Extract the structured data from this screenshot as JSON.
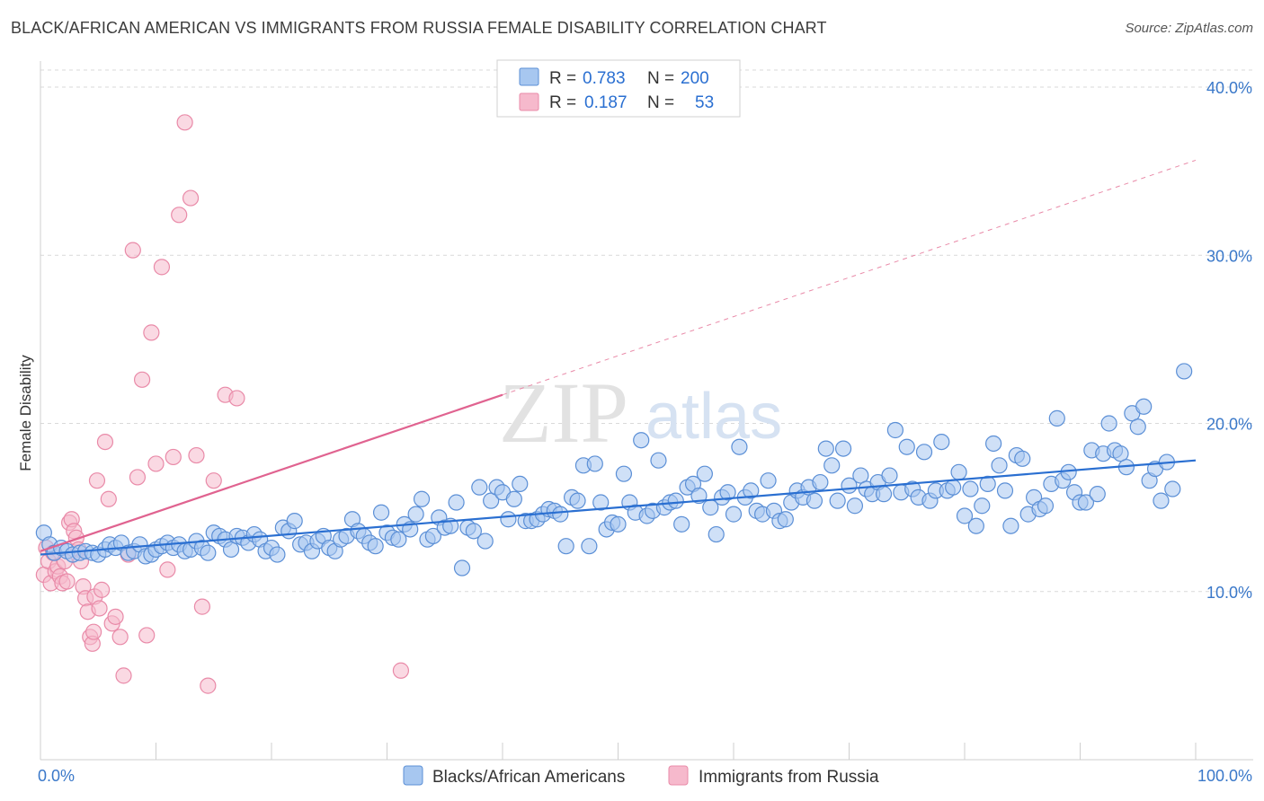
{
  "title": "BLACK/AFRICAN AMERICAN VS IMMIGRANTS FROM RUSSIA FEMALE DISABILITY CORRELATION CHART",
  "source": "Source: ZipAtlas.com",
  "watermark": {
    "zip": "ZIP",
    "atlas": "atlas"
  },
  "colors": {
    "blue_fill": "#a7c7f0",
    "blue_stroke": "#5b8fd6",
    "blue_line": "#2a6fd1",
    "pink_fill": "#f6b9cc",
    "pink_stroke": "#e98aa8",
    "pink_line": "#e06390",
    "grid": "#d9d9d9",
    "tick_text": "#3a78c9"
  },
  "legend": {
    "rows": [
      {
        "r_label": "R =",
        "r_value": "0.783",
        "n_label": "N =",
        "n_value": "200"
      },
      {
        "r_label": "R =",
        "r_value": "0.187",
        "n_label": "N =",
        "n_value": "53"
      }
    ]
  },
  "bottom_legend": [
    "Blacks/African Americans",
    "Immigrants from Russia"
  ],
  "chart_data": {
    "type": "scatter",
    "title": "BLACK/AFRICAN AMERICAN VS IMMIGRANTS FROM RUSSIA FEMALE DISABILITY CORRELATION CHART",
    "xlabel": "",
    "ylabel": "Female Disability",
    "xlim": [
      0,
      100
    ],
    "ylim": [
      0,
      40
    ],
    "x_tick_labels": [
      "0.0%",
      "100.0%"
    ],
    "y_ticks": [
      10,
      20,
      30,
      40
    ],
    "y_tick_labels": [
      "10.0%",
      "20.0%",
      "30.0%",
      "40.0%"
    ],
    "grid": true,
    "legend_position": "top-center",
    "series": [
      {
        "name": "Blacks/African Americans",
        "r": 0.783,
        "n": 200,
        "trend": {
          "x": [
            0,
            100
          ],
          "y": [
            12.2,
            17.8
          ]
        },
        "points": [
          [
            0.3,
            13.5
          ],
          [
            0.8,
            12.8
          ],
          [
            1.2,
            12.3
          ],
          [
            1.8,
            12.6
          ],
          [
            2.3,
            12.4
          ],
          [
            2.8,
            12.2
          ],
          [
            3.4,
            12.3
          ],
          [
            3.9,
            12.4
          ],
          [
            4.5,
            12.3
          ],
          [
            5.0,
            12.2
          ],
          [
            5.6,
            12.5
          ],
          [
            6.0,
            12.8
          ],
          [
            6.5,
            12.6
          ],
          [
            7.0,
            12.9
          ],
          [
            7.6,
            12.3
          ],
          [
            8.1,
            12.4
          ],
          [
            8.6,
            12.8
          ],
          [
            9.1,
            12.1
          ],
          [
            9.6,
            12.2
          ],
          [
            10.0,
            12.5
          ],
          [
            10.5,
            12.7
          ],
          [
            11.0,
            12.9
          ],
          [
            11.5,
            12.6
          ],
          [
            12.0,
            12.8
          ],
          [
            12.5,
            12.4
          ],
          [
            13.0,
            12.5
          ],
          [
            13.5,
            13.0
          ],
          [
            14.0,
            12.6
          ],
          [
            14.5,
            12.3
          ],
          [
            15.0,
            13.5
          ],
          [
            15.5,
            13.3
          ],
          [
            16.0,
            13.1
          ],
          [
            16.5,
            12.5
          ],
          [
            17.0,
            13.3
          ],
          [
            17.5,
            13.2
          ],
          [
            18.0,
            12.9
          ],
          [
            18.5,
            13.4
          ],
          [
            19.0,
            13.1
          ],
          [
            19.5,
            12.4
          ],
          [
            20.0,
            12.6
          ],
          [
            20.5,
            12.2
          ],
          [
            21.0,
            13.8
          ],
          [
            21.5,
            13.6
          ],
          [
            22.0,
            14.2
          ],
          [
            22.5,
            12.8
          ],
          [
            23.0,
            12.9
          ],
          [
            23.5,
            12.4
          ],
          [
            24.0,
            13.0
          ],
          [
            24.5,
            13.3
          ],
          [
            25.0,
            12.6
          ],
          [
            25.5,
            12.4
          ],
          [
            26.0,
            13.1
          ],
          [
            26.5,
            13.3
          ],
          [
            27.0,
            14.3
          ],
          [
            27.5,
            13.6
          ],
          [
            28.0,
            13.3
          ],
          [
            28.5,
            12.9
          ],
          [
            29.0,
            12.7
          ],
          [
            29.5,
            14.7
          ],
          [
            30.0,
            13.5
          ],
          [
            30.5,
            13.2
          ],
          [
            31.0,
            13.1
          ],
          [
            31.5,
            14.0
          ],
          [
            32.0,
            13.7
          ],
          [
            32.5,
            14.6
          ],
          [
            33.0,
            15.5
          ],
          [
            33.5,
            13.1
          ],
          [
            34.0,
            13.3
          ],
          [
            34.5,
            14.4
          ],
          [
            35.0,
            13.8
          ],
          [
            35.5,
            13.9
          ],
          [
            36.0,
            15.3
          ],
          [
            36.5,
            11.4
          ],
          [
            37.0,
            13.8
          ],
          [
            37.5,
            13.6
          ],
          [
            38.0,
            16.2
          ],
          [
            38.5,
            13.0
          ],
          [
            39.0,
            15.4
          ],
          [
            39.5,
            16.2
          ],
          [
            40.0,
            15.9
          ],
          [
            40.5,
            14.3
          ],
          [
            41.0,
            15.5
          ],
          [
            41.5,
            16.4
          ],
          [
            42.0,
            14.2
          ],
          [
            42.5,
            14.2
          ],
          [
            43.0,
            14.3
          ],
          [
            43.5,
            14.6
          ],
          [
            44.0,
            14.9
          ],
          [
            44.5,
            14.8
          ],
          [
            45.0,
            14.6
          ],
          [
            45.5,
            12.7
          ],
          [
            46.0,
            15.6
          ],
          [
            46.5,
            15.4
          ],
          [
            47.0,
            17.5
          ],
          [
            47.5,
            12.7
          ],
          [
            48.0,
            17.6
          ],
          [
            48.5,
            15.3
          ],
          [
            49.0,
            13.7
          ],
          [
            49.5,
            14.1
          ],
          [
            50.0,
            14.0
          ],
          [
            50.5,
            17.0
          ],
          [
            51.0,
            15.3
          ],
          [
            51.5,
            14.7
          ],
          [
            52.0,
            19.0
          ],
          [
            52.5,
            14.5
          ],
          [
            53.0,
            14.8
          ],
          [
            53.5,
            17.8
          ],
          [
            54.0,
            15.0
          ],
          [
            54.5,
            15.3
          ],
          [
            55.0,
            15.4
          ],
          [
            55.5,
            14.0
          ],
          [
            56.0,
            16.2
          ],
          [
            56.5,
            16.4
          ],
          [
            57.0,
            15.7
          ],
          [
            57.5,
            17.0
          ],
          [
            58.0,
            15.0
          ],
          [
            58.5,
            13.4
          ],
          [
            59.0,
            15.6
          ],
          [
            59.5,
            15.9
          ],
          [
            60.0,
            14.6
          ],
          [
            60.5,
            18.6
          ],
          [
            61.0,
            15.6
          ],
          [
            61.5,
            16.0
          ],
          [
            62.0,
            14.8
          ],
          [
            62.5,
            14.6
          ],
          [
            63.0,
            16.6
          ],
          [
            63.5,
            14.8
          ],
          [
            64.0,
            14.2
          ],
          [
            64.5,
            14.3
          ],
          [
            65.0,
            15.3
          ],
          [
            65.5,
            16.0
          ],
          [
            66.0,
            15.6
          ],
          [
            66.5,
            16.2
          ],
          [
            67.0,
            15.4
          ],
          [
            67.5,
            16.5
          ],
          [
            68.0,
            18.5
          ],
          [
            68.5,
            17.5
          ],
          [
            69.0,
            15.4
          ],
          [
            69.5,
            18.5
          ],
          [
            70.0,
            16.3
          ],
          [
            70.5,
            15.1
          ],
          [
            71.0,
            16.9
          ],
          [
            71.5,
            16.1
          ],
          [
            72.0,
            15.8
          ],
          [
            72.5,
            16.5
          ],
          [
            73.0,
            15.8
          ],
          [
            73.5,
            16.9
          ],
          [
            74.0,
            19.6
          ],
          [
            74.5,
            15.9
          ],
          [
            75.0,
            18.6
          ],
          [
            75.5,
            16.1
          ],
          [
            76.0,
            15.6
          ],
          [
            76.5,
            18.3
          ],
          [
            77.0,
            15.4
          ],
          [
            77.5,
            16.0
          ],
          [
            78.0,
            18.9
          ],
          [
            78.5,
            16.0
          ],
          [
            79.0,
            16.2
          ],
          [
            79.5,
            17.1
          ],
          [
            80.0,
            14.5
          ],
          [
            80.5,
            16.1
          ],
          [
            81.0,
            13.9
          ],
          [
            81.5,
            15.1
          ],
          [
            82.0,
            16.4
          ],
          [
            82.5,
            18.8
          ],
          [
            83.0,
            17.5
          ],
          [
            83.5,
            16.0
          ],
          [
            84.0,
            13.9
          ],
          [
            84.5,
            18.1
          ],
          [
            85.0,
            17.9
          ],
          [
            85.5,
            14.6
          ],
          [
            86.0,
            15.6
          ],
          [
            86.5,
            14.9
          ],
          [
            87.0,
            15.1
          ],
          [
            87.5,
            16.4
          ],
          [
            88.0,
            20.3
          ],
          [
            88.5,
            16.6
          ],
          [
            89.0,
            17.1
          ],
          [
            89.5,
            15.9
          ],
          [
            90.0,
            15.3
          ],
          [
            90.5,
            15.3
          ],
          [
            91.0,
            18.4
          ],
          [
            91.5,
            15.8
          ],
          [
            92.0,
            18.2
          ],
          [
            92.5,
            20.0
          ],
          [
            93.0,
            18.4
          ],
          [
            93.5,
            18.2
          ],
          [
            94.0,
            17.4
          ],
          [
            94.5,
            20.6
          ],
          [
            95.0,
            19.8
          ],
          [
            95.5,
            21.0
          ],
          [
            96.0,
            16.6
          ],
          [
            96.5,
            17.3
          ],
          [
            97.0,
            15.4
          ],
          [
            97.5,
            17.7
          ],
          [
            98.0,
            16.1
          ],
          [
            99.0,
            23.1
          ]
        ]
      },
      {
        "name": "Immigrants from Russia",
        "r": 0.187,
        "n": 53,
        "trend": {
          "x": [
            0,
            40
          ],
          "y": [
            12.4,
            21.7
          ]
        },
        "points": [
          [
            0.3,
            11.0
          ],
          [
            0.5,
            12.6
          ],
          [
            0.7,
            11.8
          ],
          [
            0.9,
            10.5
          ],
          [
            1.1,
            12.3
          ],
          [
            1.3,
            11.2
          ],
          [
            1.5,
            11.5
          ],
          [
            1.7,
            10.9
          ],
          [
            1.9,
            10.5
          ],
          [
            2.1,
            11.8
          ],
          [
            2.3,
            10.6
          ],
          [
            2.5,
            14.1
          ],
          [
            2.7,
            14.3
          ],
          [
            2.9,
            13.6
          ],
          [
            3.1,
            13.2
          ],
          [
            3.3,
            12.5
          ],
          [
            3.5,
            11.8
          ],
          [
            3.7,
            10.3
          ],
          [
            3.9,
            9.6
          ],
          [
            4.1,
            8.8
          ],
          [
            4.3,
            7.3
          ],
          [
            4.5,
            6.9
          ],
          [
            4.7,
            9.7
          ],
          [
            4.9,
            16.6
          ],
          [
            5.1,
            9.0
          ],
          [
            5.3,
            10.1
          ],
          [
            4.6,
            7.6
          ],
          [
            5.6,
            18.9
          ],
          [
            5.9,
            15.5
          ],
          [
            6.2,
            8.1
          ],
          [
            6.5,
            8.5
          ],
          [
            6.9,
            7.3
          ],
          [
            7.2,
            5.0
          ],
          [
            7.6,
            12.2
          ],
          [
            8.0,
            30.3
          ],
          [
            8.4,
            16.8
          ],
          [
            8.8,
            22.6
          ],
          [
            9.2,
            7.4
          ],
          [
            9.6,
            25.4
          ],
          [
            10.0,
            17.6
          ],
          [
            10.5,
            29.3
          ],
          [
            11.0,
            11.3
          ],
          [
            11.5,
            18.0
          ],
          [
            12.0,
            32.4
          ],
          [
            12.5,
            37.9
          ],
          [
            13.0,
            33.4
          ],
          [
            13.5,
            18.1
          ],
          [
            14.0,
            9.1
          ],
          [
            14.5,
            4.4
          ],
          [
            15.0,
            16.6
          ],
          [
            16.0,
            21.7
          ],
          [
            17.0,
            21.5
          ],
          [
            31.2,
            5.3
          ]
        ]
      }
    ]
  }
}
